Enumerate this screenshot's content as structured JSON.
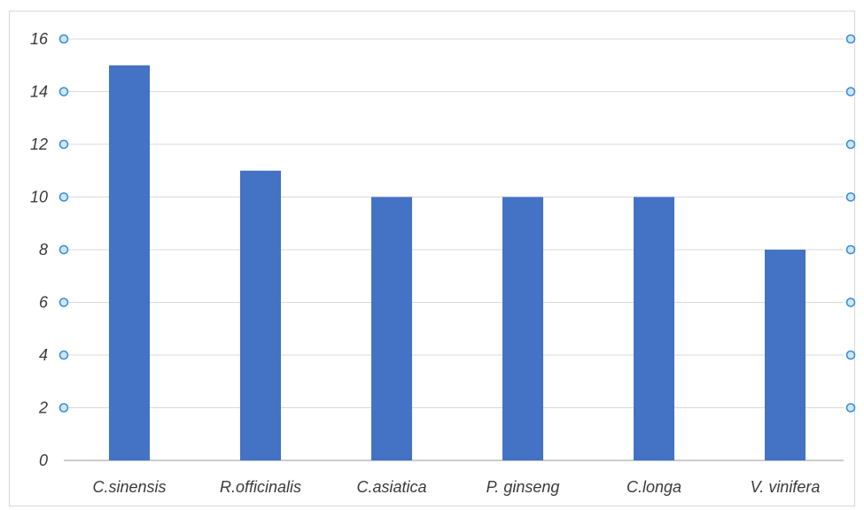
{
  "chart_data": {
    "type": "bar",
    "categories": [
      "C.sinensis",
      "R.officinalis",
      "C.asiatica",
      "P. ginseng",
      "C.longa",
      "V. vinifera"
    ],
    "values": [
      15,
      11,
      10,
      10,
      10,
      8
    ],
    "ylim": [
      0,
      16
    ],
    "yticks": [
      "0",
      "2",
      "4",
      "6",
      "8",
      "10",
      "12",
      "14",
      "16"
    ],
    "grid": true,
    "bar_color": "#4472c4",
    "handle_color": "#3a8fd6",
    "title": "",
    "xlabel": "",
    "ylabel": ""
  }
}
